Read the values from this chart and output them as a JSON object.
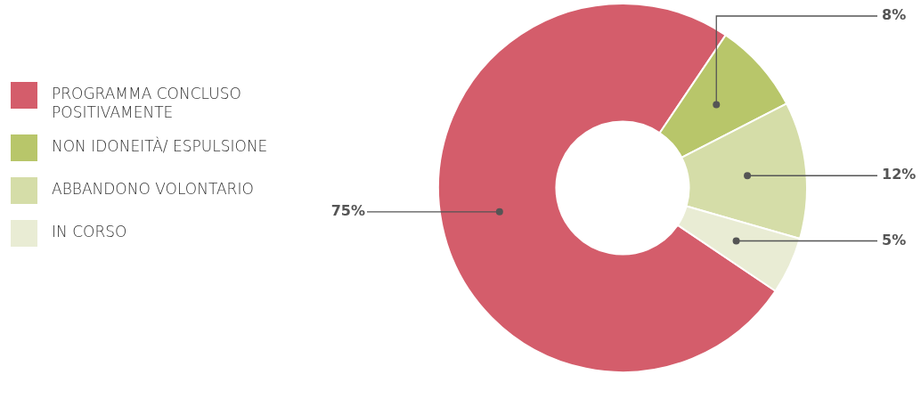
{
  "chart_data": {
    "type": "donut",
    "categories": [
      "PROGRAMMA CONCLUSO POSITIVAMENTE",
      "NON IDONEITÀ/ ESPULSIONE",
      "ABBANDONO VOLONTARIO",
      "IN CORSO"
    ],
    "values": [
      75,
      8,
      12,
      5
    ],
    "colors": [
      "#d45d6b",
      "#b8c66a",
      "#d5dda8",
      "#e9ecd4"
    ],
    "value_labels": [
      "75%",
      "8%",
      "12%",
      "5%"
    ],
    "legend": "left"
  }
}
